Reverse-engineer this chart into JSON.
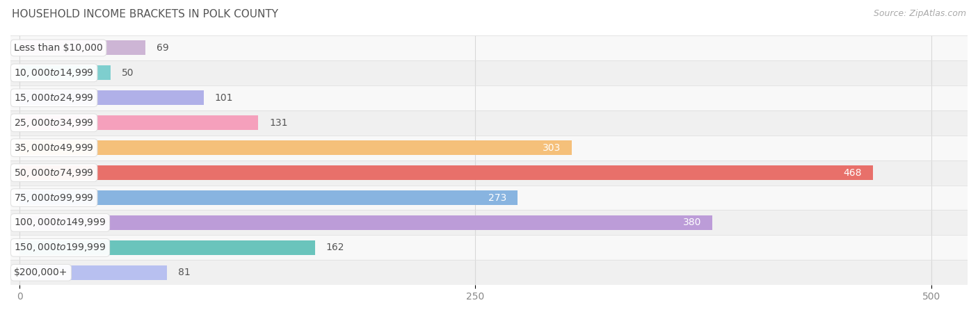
{
  "title": "HOUSEHOLD INCOME BRACKETS IN POLK COUNTY",
  "source": "Source: ZipAtlas.com",
  "categories": [
    "Less than $10,000",
    "$10,000 to $14,999",
    "$15,000 to $24,999",
    "$25,000 to $34,999",
    "$35,000 to $49,999",
    "$50,000 to $74,999",
    "$75,000 to $99,999",
    "$100,000 to $149,999",
    "$150,000 to $199,999",
    "$200,000+"
  ],
  "values": [
    69,
    50,
    101,
    131,
    303,
    468,
    273,
    380,
    162,
    81
  ],
  "bar_colors": [
    "#cdb5d5",
    "#7ecece",
    "#b0b0e8",
    "#f5a0bc",
    "#f5c07a",
    "#e8706a",
    "#88b4e0",
    "#bc9cd8",
    "#6ac4bc",
    "#b8c0f0"
  ],
  "xlim": [
    -5,
    520
  ],
  "xticks": [
    0,
    250,
    500
  ],
  "bar_height": 0.58,
  "bg_color": "#f7f7f7",
  "label_inside_threshold": 200,
  "title_fontsize": 11,
  "source_fontsize": 9,
  "tick_fontsize": 10,
  "bar_label_fontsize": 10,
  "category_fontsize": 10
}
